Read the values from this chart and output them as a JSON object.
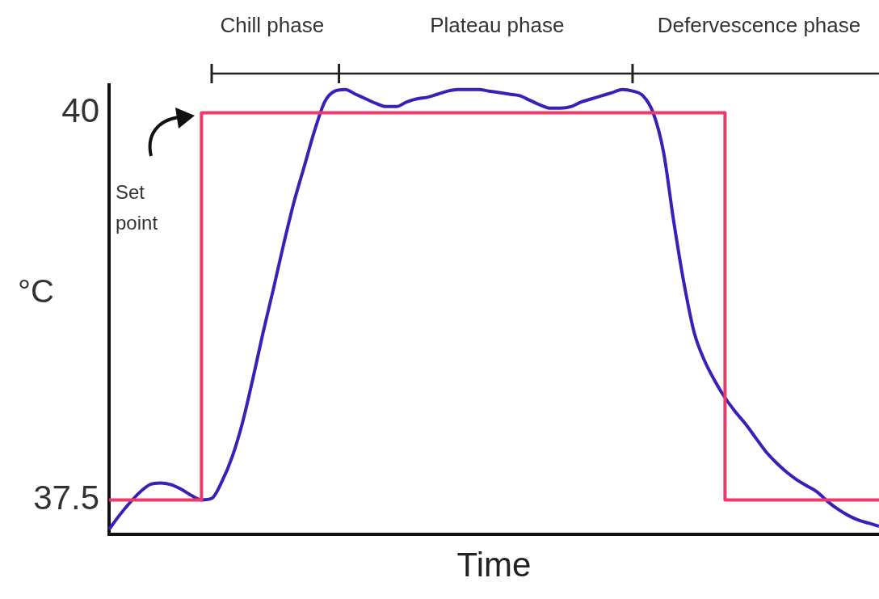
{
  "chart_data": {
    "type": "line",
    "xlabel": "Time",
    "ylabel": "°C",
    "categories": [
      null,
      null,
      null,
      null,
      null,
      null,
      null,
      null,
      null,
      null,
      null,
      null,
      null,
      null,
      null,
      null,
      null,
      null,
      null,
      null,
      null,
      null,
      null,
      null,
      null,
      null,
      null,
      null,
      null,
      null,
      null,
      null,
      null,
      null,
      null,
      null,
      null,
      null,
      null,
      null,
      null,
      null,
      null,
      null,
      null,
      null,
      null,
      null,
      null,
      null,
      null,
      null,
      null,
      null,
      null,
      null,
      null,
      null,
      null,
      null,
      null,
      null,
      null,
      null,
      null,
      null,
      null,
      null,
      null,
      null,
      null,
      null,
      null,
      null,
      null,
      null
    ],
    "series": [
      {
        "type": "step",
        "color": "#ee3a6a",
        "values": [
          37.5,
          37.5,
          37.5,
          37.5,
          37.5,
          37.5,
          37.5,
          37.5,
          37.5,
          37.5,
          40,
          40,
          40,
          40,
          40,
          40,
          40,
          40,
          40,
          40,
          40,
          40,
          40,
          40,
          40,
          40,
          40,
          40,
          40,
          40,
          40,
          40,
          40,
          40,
          40,
          40,
          40,
          40,
          40,
          40,
          40,
          40,
          40,
          40,
          40,
          40,
          40,
          40,
          40,
          40,
          40,
          40,
          40,
          40,
          40,
          40,
          40,
          40,
          40,
          40,
          40,
          37.5,
          37.5,
          37.5,
          37.5,
          37.5,
          37.5,
          37.5,
          37.5,
          37.5,
          37.5,
          37.5,
          37.5,
          37.5,
          37.5,
          37.5
        ]
      },
      {
        "type": "line",
        "color": "#3a1fb8",
        "values": [
          37.31,
          37.4,
          37.48,
          37.55,
          37.6,
          37.61,
          37.6,
          37.57,
          37.53,
          37.5,
          37.51,
          37.62,
          37.78,
          38.0,
          38.28,
          38.58,
          38.86,
          39.15,
          39.42,
          39.65,
          39.88,
          40.07,
          40.14,
          40.15,
          40.12,
          40.09,
          40.06,
          40.04,
          40.04,
          40.07,
          40.09,
          40.1,
          40.12,
          40.14,
          40.15,
          40.15,
          40.15,
          40.14,
          40.13,
          40.12,
          40.11,
          40.08,
          40.05,
          40.03,
          40.03,
          40.04,
          40.07,
          40.09,
          40.11,
          40.13,
          40.15,
          40.14,
          40.11,
          40.0,
          39.75,
          39.3,
          38.9,
          38.58,
          38.4,
          38.27,
          38.16,
          38.07,
          37.99,
          37.9,
          37.81,
          37.74,
          37.68,
          37.63,
          37.59,
          37.55,
          37.49,
          37.44,
          37.4,
          37.37,
          37.35,
          37.33
        ]
      }
    ],
    "ylim": [
      37.28,
      40.18
    ],
    "yticks": [
      37.5,
      40
    ],
    "grid": false,
    "legend": false,
    "tick_labels": "y",
    "marker": "none",
    "annotations": [
      "Chill phase",
      "Plateau phase",
      "Defervescence phase",
      "Set point"
    ]
  }
}
